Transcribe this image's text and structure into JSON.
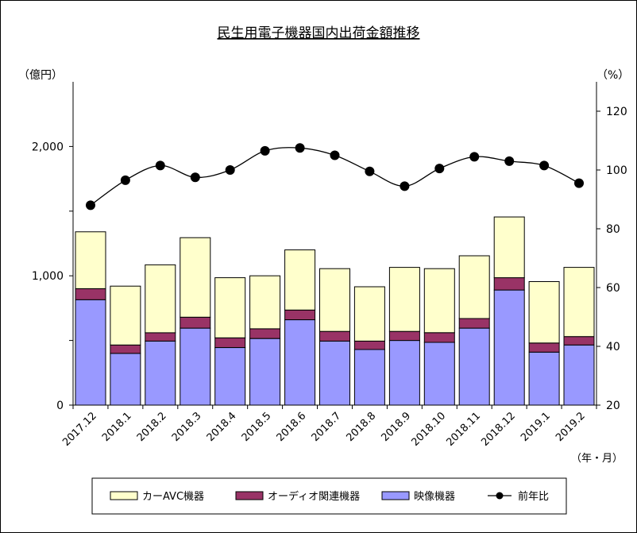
{
  "chart_data": {
    "type": "bar",
    "title": "民生用電子機器国内出荷金額推移",
    "ylabel_left": "（億円）",
    "ylabel_right": "（%）",
    "xlabel": "（年・月）",
    "categories": [
      "2017.12",
      "2018.1",
      "2018.2",
      "2018.3",
      "2018.4",
      "2018.5",
      "2018.6",
      "2018.7",
      "2018.8",
      "2018.9",
      "2018.10",
      "2018.11",
      "2018.12",
      "2019.1",
      "2019.2"
    ],
    "stacked": true,
    "series": [
      {
        "name": "映像機器",
        "axis": "left",
        "color": "#9999ff",
        "values": [
          815,
          400,
          495,
          595,
          445,
          515,
          660,
          495,
          430,
          500,
          485,
          595,
          890,
          410,
          465
        ]
      },
      {
        "name": "オーディオ関連機器",
        "axis": "left",
        "color": "#993366",
        "values": [
          85,
          65,
          65,
          85,
          75,
          75,
          75,
          75,
          65,
          70,
          75,
          75,
          95,
          70,
          65
        ]
      },
      {
        "name": "カーAVC機器",
        "axis": "left",
        "color": "#ffffcc",
        "values": [
          440,
          455,
          525,
          615,
          465,
          410,
          465,
          485,
          420,
          495,
          495,
          485,
          470,
          475,
          535
        ]
      },
      {
        "name": "前年比",
        "axis": "right",
        "type": "line",
        "color": "#000000",
        "values": [
          88,
          96.5,
          101.5,
          97.5,
          100,
          106.5,
          107.5,
          105,
          99.5,
          94.5,
          100.5,
          104.5,
          103,
          101.5,
          95.5
        ]
      }
    ],
    "ylim_left": [
      0,
      2500
    ],
    "yticks_left": [
      {
        "v": 0,
        "label": "0"
      },
      {
        "v": 1000,
        "label": "1,000"
      },
      {
        "v": 2000,
        "label": "2,000"
      }
    ],
    "ylim_right": [
      20,
      130
    ],
    "yticks_right": [
      20,
      40,
      60,
      80,
      100,
      120
    ],
    "grid": false,
    "legend_position": "bottom"
  }
}
